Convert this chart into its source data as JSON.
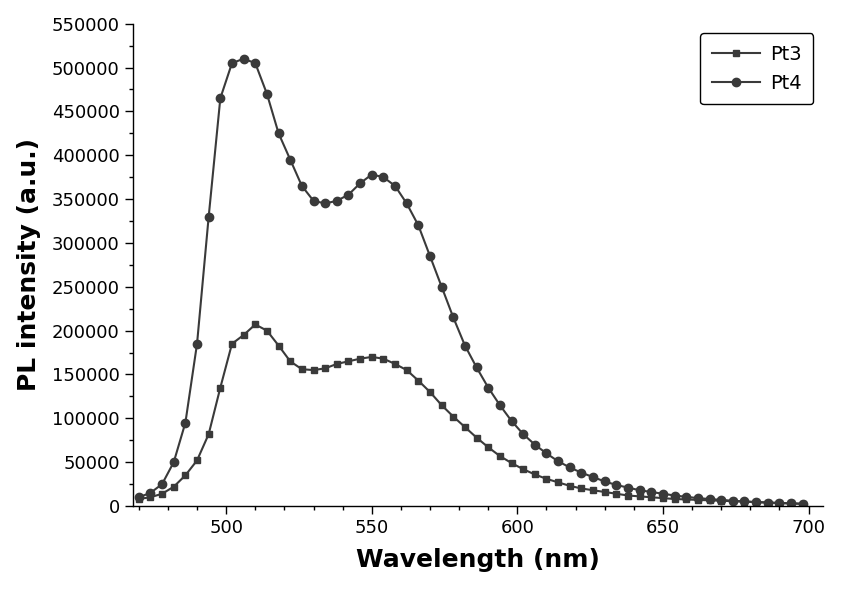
{
  "Pt3_x": [
    470,
    474,
    478,
    482,
    486,
    490,
    494,
    498,
    502,
    506,
    510,
    514,
    518,
    522,
    526,
    530,
    534,
    538,
    542,
    546,
    550,
    554,
    558,
    562,
    566,
    570,
    574,
    578,
    582,
    586,
    590,
    594,
    598,
    602,
    606,
    610,
    614,
    618,
    622,
    626,
    630,
    634,
    638,
    642,
    646,
    650,
    654,
    658,
    662,
    666,
    670,
    674,
    678,
    682,
    686,
    690,
    694,
    698
  ],
  "Pt3_y": [
    8000,
    10000,
    14000,
    22000,
    35000,
    52000,
    82000,
    135000,
    185000,
    195000,
    207000,
    200000,
    183000,
    165000,
    156000,
    155000,
    157000,
    162000,
    165000,
    168000,
    170000,
    168000,
    162000,
    155000,
    143000,
    130000,
    115000,
    102000,
    90000,
    78000,
    67000,
    57000,
    49000,
    42000,
    36000,
    31000,
    27000,
    23000,
    20000,
    18000,
    16000,
    14000,
    12000,
    11000,
    10000,
    9000,
    8000,
    7500,
    7000,
    6500,
    6000,
    5500,
    5000,
    4500,
    4000,
    3500,
    3000,
    2500
  ],
  "Pt4_x": [
    470,
    474,
    478,
    482,
    486,
    490,
    494,
    498,
    502,
    506,
    510,
    514,
    518,
    522,
    526,
    530,
    534,
    538,
    542,
    546,
    550,
    554,
    558,
    562,
    566,
    570,
    574,
    578,
    582,
    586,
    590,
    594,
    598,
    602,
    606,
    610,
    614,
    618,
    622,
    626,
    630,
    634,
    638,
    642,
    646,
    650,
    654,
    658,
    662,
    666,
    670,
    674,
    678,
    682,
    686,
    690,
    694,
    698
  ],
  "Pt4_y": [
    10000,
    15000,
    25000,
    50000,
    95000,
    185000,
    330000,
    465000,
    505000,
    510000,
    505000,
    470000,
    425000,
    395000,
    365000,
    348000,
    345000,
    348000,
    355000,
    368000,
    378000,
    375000,
    365000,
    345000,
    320000,
    285000,
    250000,
    215000,
    183000,
    158000,
    135000,
    115000,
    97000,
    82000,
    70000,
    60000,
    51000,
    44000,
    38000,
    33000,
    28000,
    24000,
    21000,
    18000,
    16000,
    14000,
    12000,
    10500,
    9000,
    8000,
    7000,
    6000,
    5200,
    4500,
    3900,
    3400,
    3000,
    2600
  ],
  "xlabel": "Wavelength (nm)",
  "ylabel": "PL intensity (a.u.)",
  "xlim": [
    468,
    705
  ],
  "ylim": [
    0,
    550000
  ],
  "xticks": [
    500,
    550,
    600,
    650,
    700
  ],
  "yticks": [
    0,
    50000,
    100000,
    150000,
    200000,
    250000,
    300000,
    350000,
    400000,
    450000,
    500000,
    550000
  ],
  "legend_labels": [
    "Pt3",
    "Pt4"
  ],
  "line_color": "#3a3a3a",
  "marker_Pt3": "s",
  "marker_Pt4": "o",
  "marker_color": "#3a3a3a",
  "background_color": "#ffffff",
  "fontsize_labels": 18,
  "fontsize_ticks": 13,
  "fontsize_legend": 14
}
